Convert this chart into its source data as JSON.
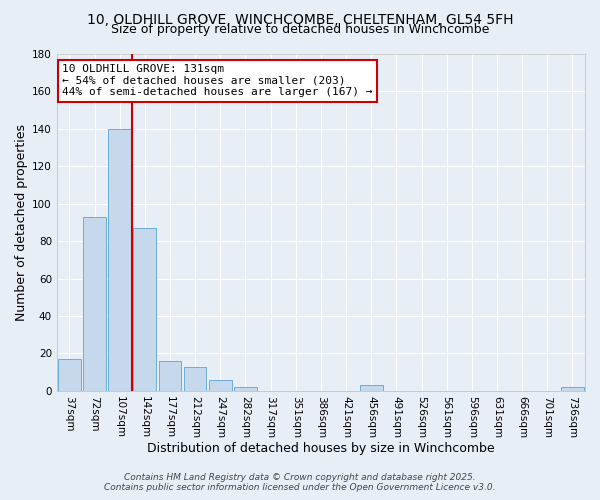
{
  "title": "10, OLDHILL GROVE, WINCHCOMBE, CHELTENHAM, GL54 5FH",
  "subtitle": "Size of property relative to detached houses in Winchcombe",
  "xlabel": "Distribution of detached houses by size in Winchcombe",
  "ylabel": "Number of detached properties",
  "bar_labels": [
    "37sqm",
    "72sqm",
    "107sqm",
    "142sqm",
    "177sqm",
    "212sqm",
    "247sqm",
    "282sqm",
    "317sqm",
    "351sqm",
    "386sqm",
    "421sqm",
    "456sqm",
    "491sqm",
    "526sqm",
    "561sqm",
    "596sqm",
    "631sqm",
    "666sqm",
    "701sqm",
    "736sqm"
  ],
  "bar_values": [
    17,
    93,
    140,
    87,
    16,
    13,
    6,
    2,
    0,
    0,
    0,
    0,
    3,
    0,
    0,
    0,
    0,
    0,
    0,
    0,
    2
  ],
  "bar_color": "#c6d9ec",
  "bar_edge_color": "#6aaed6",
  "vline_x": 2.5,
  "vline_color": "#cc0000",
  "annotation_title": "10 OLDHILL GROVE: 131sqm",
  "annotation_line2": "← 54% of detached houses are smaller (203)",
  "annotation_line3": "44% of semi-detached houses are larger (167) →",
  "annotation_box_edge": "#cc0000",
  "annotation_box_face": "white",
  "ylim": [
    0,
    180
  ],
  "yticks": [
    0,
    20,
    40,
    60,
    80,
    100,
    120,
    140,
    160,
    180
  ],
  "bg_color": "#e8eef6",
  "plot_bg_color": "#e8eef6",
  "grid_color": "#ffffff",
  "footer_line1": "Contains HM Land Registry data © Crown copyright and database right 2025.",
  "footer_line2": "Contains public sector information licensed under the Open Government Licence v3.0.",
  "title_fontsize": 10,
  "subtitle_fontsize": 9,
  "axis_label_fontsize": 9,
  "tick_fontsize": 7.5,
  "annotation_fontsize": 8,
  "footer_fontsize": 6.5
}
